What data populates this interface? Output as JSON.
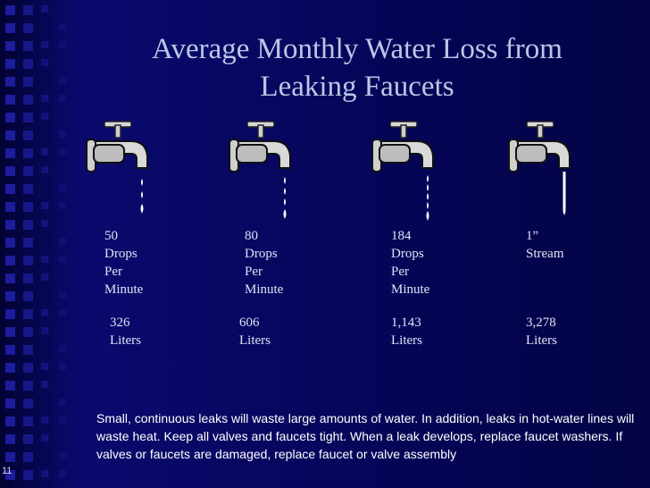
{
  "slide": {
    "title": "Average Monthly Water Loss from\nLeaking Faucets",
    "page_number": "11",
    "faucets": [
      {
        "rate": "50\nDrops\nPer\nMinute",
        "loss": "326\nLiters"
      },
      {
        "rate": "80\nDrops\nPer\nMinute",
        "loss": "606\nLiters"
      },
      {
        "rate": "184\nDrops\nPer\nMinute",
        "loss": "1,143\nLiters"
      },
      {
        "rate": "1”\nStream",
        "loss": "3,278\nLiters"
      }
    ],
    "note": "Small, continuous leaks will waste large amounts of water.  In addition, leaks in hot-water lines will waste heat.  Keep all valves and faucets tight.  When a leak develops, replace faucet washers.  If valves or faucets are damaged, replace faucet or valve assembly",
    "colors": {
      "background": "#06064a",
      "title": "#b9c8e6",
      "text": "#dde3f5",
      "accent_squares": "#1c1c9c"
    },
    "icons": [
      "faucet-icon",
      "water-drop-icon"
    ]
  }
}
